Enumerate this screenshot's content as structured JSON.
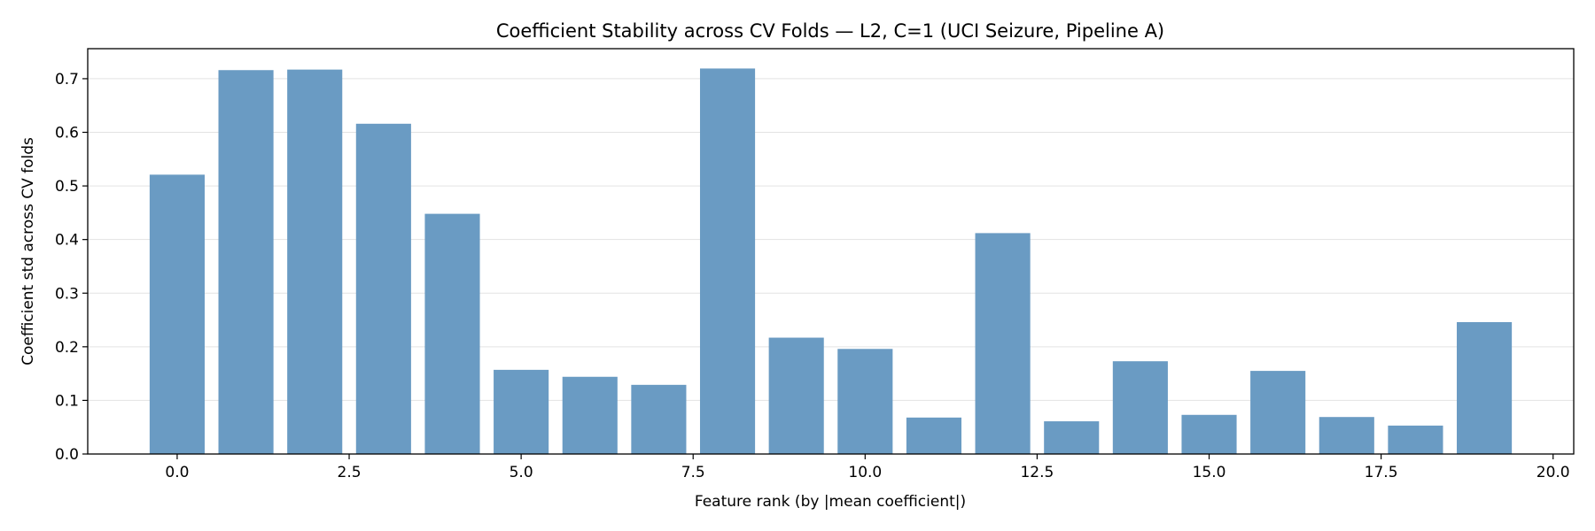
{
  "chart_data": {
    "type": "bar",
    "title": "Coefficient Stability across CV Folds — L2, C=1 (UCI Seizure, Pipeline A)",
    "xlabel": "Feature rank (by |mean coefficient|)",
    "ylabel": "Coefficient std across CV folds",
    "x": [
      0,
      1,
      2,
      3,
      4,
      5,
      6,
      7,
      8,
      9,
      10,
      11,
      12,
      13,
      14,
      15,
      16,
      17,
      18,
      19
    ],
    "values": [
      0.521,
      0.716,
      0.717,
      0.616,
      0.448,
      0.157,
      0.144,
      0.129,
      0.719,
      0.217,
      0.196,
      0.068,
      0.412,
      0.061,
      0.173,
      0.073,
      0.155,
      0.069,
      0.053,
      0.246
    ],
    "xlim": [
      -1.3,
      20.3
    ],
    "ylim": [
      0,
      0.756
    ],
    "xticks": [
      0.0,
      2.5,
      5.0,
      7.5,
      10.0,
      12.5,
      15.0,
      17.5,
      20.0
    ],
    "xtick_labels": [
      "0.0",
      "2.5",
      "5.0",
      "7.5",
      "10.0",
      "12.5",
      "15.0",
      "17.5",
      "20.0"
    ],
    "yticks": [
      0.0,
      0.1,
      0.2,
      0.3,
      0.4,
      0.5,
      0.6,
      0.7
    ],
    "ytick_labels": [
      "0.0",
      "0.1",
      "0.2",
      "0.3",
      "0.4",
      "0.5",
      "0.6",
      "0.7"
    ],
    "bar_width": 0.8,
    "grid": "horizontal",
    "colors": {
      "bar": "#6a9bc3",
      "grid": "#e3e3e3",
      "axis": "#000000"
    }
  }
}
